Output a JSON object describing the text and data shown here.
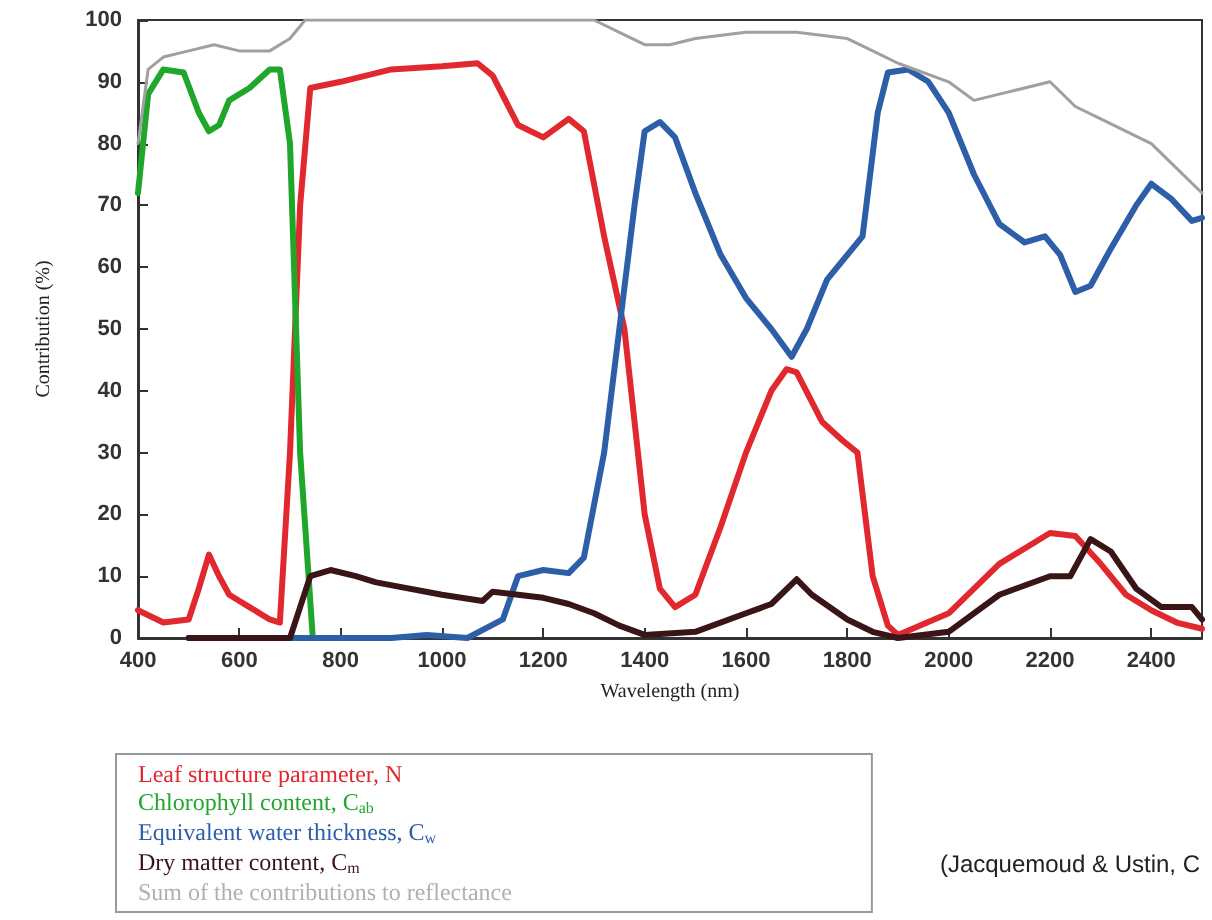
{
  "chart_data": {
    "type": "line",
    "xlabel": "Wavelength (nm)",
    "ylabel": "Contribution (%)",
    "xlim": [
      400,
      2500
    ],
    "xticks": [
      400,
      600,
      800,
      1000,
      1200,
      1400,
      1600,
      1800,
      2000,
      2200,
      2400
    ],
    "ylim": [
      0,
      100
    ],
    "yticks": [
      0,
      10,
      20,
      30,
      40,
      50,
      60,
      70,
      80,
      90,
      100
    ],
    "grid": false,
    "legend": "bottom",
    "marker": "none",
    "line_style": "solid",
    "annotations": [
      "(Jacquemoud & Ustin, C"
    ],
    "series": [
      {
        "name": "Leaf structure parameter, N",
        "color": "#e0282e",
        "x": [
          400,
          450,
          500,
          520,
          540,
          560,
          580,
          620,
          660,
          680,
          700,
          720,
          740,
          800,
          900,
          1000,
          1070,
          1100,
          1150,
          1200,
          1250,
          1280,
          1320,
          1360,
          1380,
          1400,
          1430,
          1460,
          1500,
          1550,
          1600,
          1650,
          1680,
          1700,
          1750,
          1790,
          1820,
          1850,
          1880,
          1900,
          2000,
          2100,
          2200,
          2250,
          2300,
          2350,
          2400,
          2450,
          2500
        ],
        "values": [
          4.5,
          2.5,
          3,
          8,
          13.5,
          10,
          7,
          5,
          3,
          2.5,
          30,
          70,
          89,
          90,
          92,
          92.5,
          93,
          91,
          83,
          81,
          84,
          82,
          65,
          50,
          35,
          20,
          8,
          5,
          7,
          18,
          30,
          40,
          43.5,
          43,
          35,
          32,
          30,
          10,
          2,
          0.5,
          4,
          12,
          17,
          16.5,
          12,
          7,
          4.5,
          2.5,
          1.5
        ]
      },
      {
        "name": "Chlorophyll content, C$_{ab}$",
        "color": "#1fa62b",
        "x": [
          400,
          420,
          450,
          490,
          520,
          540,
          560,
          580,
          620,
          660,
          680,
          700,
          720,
          745
        ],
        "values": [
          72,
          88,
          92,
          91.5,
          85,
          82,
          83,
          87,
          89,
          92,
          92,
          80,
          30,
          0
        ]
      },
      {
        "name": "Equivalent water thickness, C$_{w}$",
        "color": "#2d5fa8",
        "x": [
          500,
          900,
          970,
          1050,
          1120,
          1150,
          1200,
          1250,
          1280,
          1320,
          1350,
          1380,
          1400,
          1430,
          1460,
          1500,
          1550,
          1600,
          1650,
          1690,
          1720,
          1760,
          1800,
          1830,
          1860,
          1880,
          1920,
          1960,
          2000,
          2050,
          2100,
          2150,
          2190,
          2220,
          2250,
          2280,
          2320,
          2370,
          2400,
          2440,
          2480,
          2500
        ],
        "values": [
          0,
          0,
          0.5,
          0,
          3,
          10,
          11,
          10.5,
          13,
          30,
          50,
          70,
          82,
          83.5,
          81,
          72,
          62,
          55,
          50,
          45.5,
          50,
          58,
          62,
          65,
          85,
          91.5,
          92,
          90,
          85,
          75,
          67,
          64,
          65,
          62,
          56,
          57,
          63,
          70,
          73.5,
          71,
          67.5,
          68
        ]
      },
      {
        "name": "Dry matter content, C$_{m}$",
        "color": "#3a1518",
        "x": [
          500,
          700,
          720,
          740,
          780,
          830,
          870,
          1000,
          1080,
          1100,
          1150,
          1200,
          1250,
          1300,
          1350,
          1400,
          1500,
          1600,
          1650,
          1700,
          1730,
          1800,
          1850,
          1900,
          2000,
          2100,
          2200,
          2240,
          2280,
          2320,
          2370,
          2420,
          2480,
          2500
        ],
        "values": [
          0,
          0,
          5,
          10,
          11,
          10,
          9,
          7,
          6,
          7.5,
          7,
          6.5,
          5.5,
          4,
          2,
          0.5,
          1,
          4,
          5.5,
          9.5,
          7,
          3,
          1,
          0,
          1,
          7,
          10,
          10,
          16,
          14,
          8,
          5,
          5,
          3
        ]
      },
      {
        "name": "Sum of the contributions to reflectance",
        "color": "#a0a0a0",
        "x": [
          400,
          420,
          450,
          500,
          550,
          600,
          660,
          700,
          730,
          1300,
          1350,
          1400,
          1450,
          1500,
          1600,
          1700,
          1800,
          1850,
          1900,
          2000,
          2050,
          2100,
          2200,
          2250,
          2300,
          2400,
          2450,
          2500
        ],
        "values": [
          80,
          92,
          94,
          95,
          96,
          95,
          95,
          97,
          100,
          100,
          98,
          96,
          96,
          97,
          98,
          98,
          97,
          95,
          93,
          90,
          87,
          88,
          90,
          86,
          84,
          80,
          76,
          72
        ]
      }
    ]
  }
}
